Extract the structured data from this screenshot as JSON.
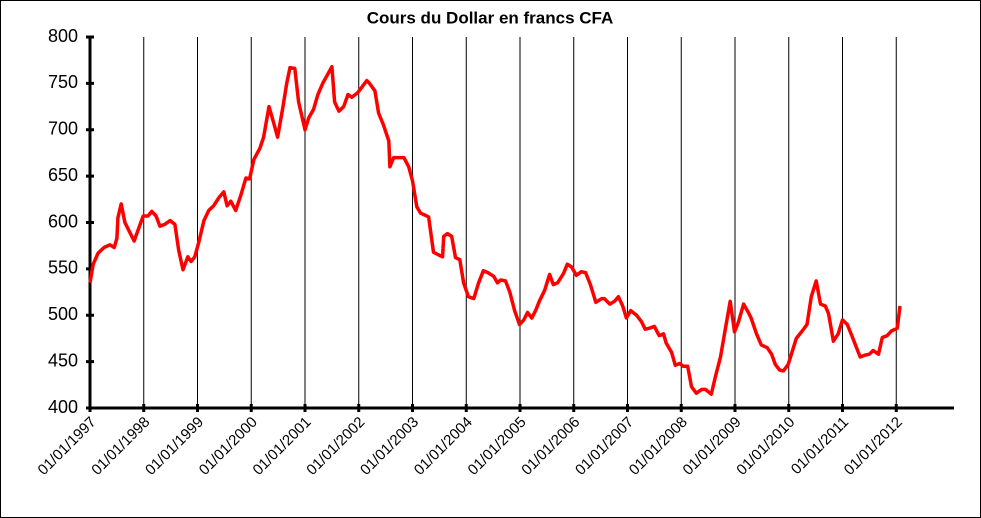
{
  "chart_data": {
    "type": "line",
    "title": "Cours du Dollar en francs CFA",
    "x": [
      1997.0,
      1997.06,
      1997.15,
      1997.26,
      1997.37,
      1997.45,
      1997.5,
      1997.52,
      1997.58,
      1997.65,
      1997.82,
      1997.99,
      1998.08,
      1998.15,
      1998.23,
      1998.3,
      1998.39,
      1998.49,
      1998.58,
      1998.65,
      1998.73,
      1998.82,
      1998.88,
      1998.95,
      1999.03,
      1999.12,
      1999.21,
      1999.3,
      1999.4,
      1999.49,
      1999.55,
      1999.62,
      1999.71,
      1999.81,
      1999.9,
      1999.97,
      2000.05,
      2000.16,
      2000.23,
      2000.33,
      2000.42,
      2000.49,
      2000.59,
      2000.66,
      2000.72,
      2000.81,
      2000.88,
      2001.0,
      2001.07,
      2001.16,
      2001.24,
      2001.33,
      2001.5,
      2001.55,
      2001.63,
      2001.72,
      2001.8,
      2001.87,
      2001.98,
      2002.15,
      2002.2,
      2002.3,
      2002.37,
      2002.46,
      2002.56,
      2002.58,
      2002.65,
      2002.84,
      2002.93,
      2003.0,
      2003.08,
      2003.15,
      2003.23,
      2003.3,
      2003.39,
      2003.49,
      2003.56,
      2003.58,
      2003.65,
      2003.73,
      2003.8,
      2003.88,
      2003.95,
      2004.04,
      2004.14,
      2004.23,
      2004.32,
      2004.4,
      2004.51,
      2004.58,
      2004.64,
      2004.73,
      2004.81,
      2004.9,
      2004.99,
      2005.07,
      2005.14,
      2005.22,
      2005.29,
      2005.36,
      2005.46,
      2005.55,
      2005.62,
      2005.7,
      2005.81,
      2005.88,
      2005.96,
      2006.05,
      2006.14,
      2006.22,
      2006.31,
      2006.41,
      2006.52,
      2006.57,
      2006.67,
      2006.76,
      2006.83,
      2006.91,
      2006.98,
      2007.06,
      2007.17,
      2007.26,
      2007.33,
      2007.41,
      2007.5,
      2007.59,
      2007.67,
      2007.72,
      2007.82,
      2007.89,
      2007.97,
      2008.04,
      2008.12,
      2008.19,
      2008.28,
      2008.38,
      2008.45,
      2008.56,
      2008.64,
      2008.73,
      2008.82,
      2008.91,
      2008.99,
      2009.06,
      2009.16,
      2009.25,
      2009.3,
      2009.4,
      2009.49,
      2009.6,
      2009.68,
      2009.75,
      2009.83,
      2009.9,
      2009.99,
      2010.05,
      2010.14,
      2010.25,
      2010.34,
      2010.42,
      2010.51,
      2010.59,
      2010.68,
      2010.74,
      2010.83,
      2010.92,
      2011.0,
      2011.09,
      2011.18,
      2011.24,
      2011.33,
      2011.42,
      2011.5,
      2011.57,
      2011.67,
      2011.74,
      2011.83,
      2011.91,
      2012.02,
      2012.07
    ],
    "values": [
      535,
      555,
      567,
      573,
      576,
      573,
      583,
      605,
      620,
      600,
      580,
      607,
      607,
      612,
      607,
      596,
      598,
      602,
      598,
      570,
      549,
      563,
      558,
      563,
      580,
      602,
      613,
      618,
      627,
      633,
      618,
      623,
      613,
      630,
      648,
      647,
      668,
      680,
      692,
      725,
      707,
      692,
      725,
      750,
      767,
      766,
      730,
      700,
      713,
      722,
      738,
      750,
      768,
      730,
      720,
      725,
      738,
      735,
      740,
      753,
      750,
      742,
      718,
      705,
      688,
      660,
      670,
      670,
      660,
      645,
      617,
      610,
      608,
      606,
      568,
      565,
      563,
      585,
      588,
      585,
      562,
      560,
      535,
      520,
      518,
      535,
      548,
      546,
      542,
      535,
      538,
      537,
      525,
      505,
      490,
      495,
      503,
      497,
      505,
      515,
      527,
      544,
      533,
      535,
      545,
      555,
      552,
      543,
      547,
      546,
      533,
      514,
      518,
      518,
      512,
      515,
      520,
      510,
      497,
      505,
      500,
      493,
      485,
      486,
      488,
      478,
      480,
      470,
      460,
      446,
      448,
      445,
      445,
      423,
      416,
      420,
      420,
      415,
      435,
      455,
      485,
      515,
      482,
      492,
      512,
      503,
      497,
      480,
      468,
      465,
      458,
      447,
      441,
      440,
      447,
      458,
      475,
      483,
      490,
      520,
      537,
      512,
      510,
      502,
      472,
      480,
      495,
      490,
      477,
      468,
      455,
      457,
      458,
      462,
      458,
      476,
      478,
      483,
      486,
      510
    ],
    "color": "#ff0000",
    "xlim": [
      1997,
      2013
    ],
    "xticks": [
      {
        "value": 1997,
        "label": "01/01/1997"
      },
      {
        "value": 1998,
        "label": "01/01/1998"
      },
      {
        "value": 1999,
        "label": "01/01/1999"
      },
      {
        "value": 2000,
        "label": "01/01/2000"
      },
      {
        "value": 2001,
        "label": "01/01/2001"
      },
      {
        "value": 2002,
        "label": "01/01/2002"
      },
      {
        "value": 2003,
        "label": "01/01/2003"
      },
      {
        "value": 2004,
        "label": "01/01/2004"
      },
      {
        "value": 2005,
        "label": "01/01/2005"
      },
      {
        "value": 2006,
        "label": "01/01/2006"
      },
      {
        "value": 2007,
        "label": "01/01/2007"
      },
      {
        "value": 2008,
        "label": "01/01/2008"
      },
      {
        "value": 2009,
        "label": "01/01/2009"
      },
      {
        "value": 2010,
        "label": "01/01/2010"
      },
      {
        "value": 2011,
        "label": "01/01/2011"
      },
      {
        "value": 2012,
        "label": "01/01/2012"
      }
    ],
    "ylim": [
      400,
      800
    ],
    "yticks": [
      400,
      450,
      500,
      550,
      600,
      650,
      700,
      750,
      800
    ],
    "grid": true
  }
}
